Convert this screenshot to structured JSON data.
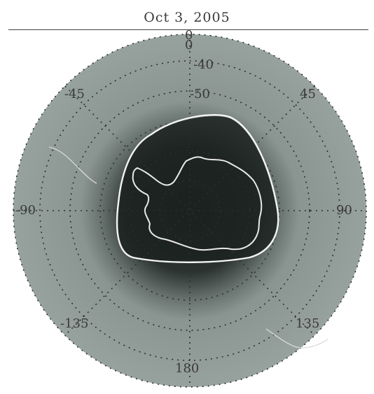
{
  "title": "Oct 3, 2005",
  "latitude_labels": [
    "0",
    "-40",
    "-50"
  ],
  "longitude_labels": {
    "top": "0",
    "top_left": "-45",
    "top_right": "45",
    "left": "-90",
    "right": "90",
    "bottom_left": "-135",
    "bottom_right": "135",
    "bottom": "180"
  },
  "colors": {
    "ocean": "#8f9a96",
    "ozone_hole": "#1f2623",
    "contour": "#f2f2f2",
    "grid": "#333333"
  }
}
